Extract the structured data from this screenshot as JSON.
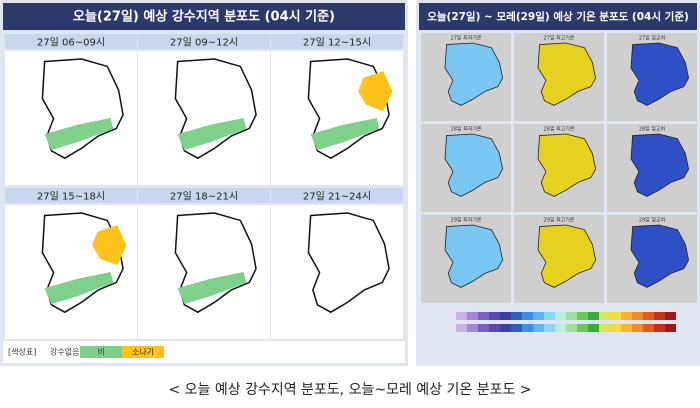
{
  "left": {
    "title": "오늘(27일) 예상 강수지역 분포도 (04시 기준)",
    "panels": [
      "27일 06~09시",
      "27일 09~12시",
      "27일 12~15시",
      "27일 15~18시",
      "27일 18~21시",
      "27일 21~24시"
    ],
    "legend": {
      "label": "[색상표]",
      "items": [
        "강수없음",
        "비",
        "소나기"
      ]
    }
  },
  "right": {
    "title": "오늘(27일) ~ 모레(29일) 예상 기온 분포도 (04시 기준)",
    "panels": [
      "27일 최저기온",
      "27일 최고기온",
      "27일 일교차",
      "28일 최저기온",
      "28일 최고기온",
      "28일 일교차",
      "29일 최저기온",
      "29일 최고기온",
      "29일 일교차"
    ]
  },
  "caption": "< 오늘 예상 강수지역 분포도, 오늘~모레 예상 기온 분포도 >"
}
